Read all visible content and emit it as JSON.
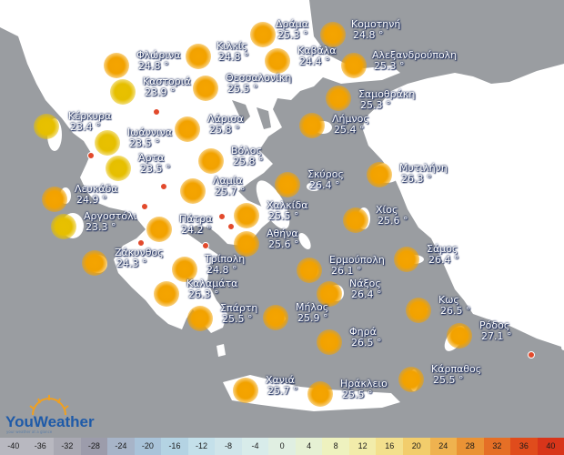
{
  "map_title": "",
  "cities": [
    {
      "id": "drama",
      "name": "Δράμα",
      "temp": "25.3 °",
      "tone": "orange"
    },
    {
      "id": "komotini",
      "name": "Κομοτηνή",
      "temp": "24.8 °",
      "tone": "orange"
    },
    {
      "id": "florina",
      "name": "Φλώρινα",
      "temp": "24.8 °",
      "tone": "orange"
    },
    {
      "id": "kilkis",
      "name": "Κιλκίς",
      "temp": "24.8 °",
      "tone": "orange"
    },
    {
      "id": "kavala",
      "name": "Καβάλα",
      "temp": "24.4 °",
      "tone": "orange"
    },
    {
      "id": "alexandroupoli",
      "name": "Αλεξανδρούπολη",
      "temp": "25.3 °",
      "tone": "orange"
    },
    {
      "id": "kastoria",
      "name": "Καστοριά",
      "temp": "23.9 °",
      "tone": "yellow"
    },
    {
      "id": "thessaloniki",
      "name": "Θεσσαλονίκη",
      "temp": "25.5 °",
      "tone": "orange"
    },
    {
      "id": "samothraki",
      "name": "Σαμοθράκη",
      "temp": "25.3 °",
      "tone": "orange"
    },
    {
      "id": "kerkyra",
      "name": "Κέρκυρα",
      "temp": "23.4 °",
      "tone": "yellow"
    },
    {
      "id": "ioannina",
      "name": "Ιωάννινα",
      "temp": "23.5 °",
      "tone": "yellow"
    },
    {
      "id": "larisa",
      "name": "Λάρισα",
      "temp": "25.8 °",
      "tone": "orange"
    },
    {
      "id": "limnos",
      "name": "Λήμνος",
      "temp": "25.4 °",
      "tone": "orange"
    },
    {
      "id": "arta",
      "name": "Άρτα",
      "temp": "23.5 °",
      "tone": "yellow"
    },
    {
      "id": "volos",
      "name": "Βόλος",
      "temp": "25.8 °",
      "tone": "orange"
    },
    {
      "id": "mytilini",
      "name": "Μυτιλήνη",
      "temp": "26.3 °",
      "tone": "orange"
    },
    {
      "id": "lefkada",
      "name": "Λευκάδα",
      "temp": "24.9 °",
      "tone": "orange"
    },
    {
      "id": "lamia",
      "name": "Λαμία",
      "temp": "25.7 °",
      "tone": "orange"
    },
    {
      "id": "skyros",
      "name": "Σκύρος",
      "temp": "26.4 °",
      "tone": "orange"
    },
    {
      "id": "argostoli",
      "name": "Αργοστόλι",
      "temp": "23.3 °",
      "tone": "yellow"
    },
    {
      "id": "patra",
      "name": "Πάτρα",
      "temp": "24.2 °",
      "tone": "orange"
    },
    {
      "id": "chalkida",
      "name": "Χαλκίδα",
      "temp": "25.5 °",
      "tone": "orange"
    },
    {
      "id": "chios",
      "name": "Χίος",
      "temp": "25.6 °",
      "tone": "orange"
    },
    {
      "id": "athina",
      "name": "Αθήνα",
      "temp": "25.6 °",
      "tone": "orange"
    },
    {
      "id": "zakynthos",
      "name": "Ζάκυνθος",
      "temp": "24.3 °",
      "tone": "orange"
    },
    {
      "id": "tripoli",
      "name": "Τρίπολη",
      "temp": "24.8 °",
      "tone": "orange"
    },
    {
      "id": "ermoupoli",
      "name": "Ερμούπολη",
      "temp": "26.1 °",
      "tone": "orange"
    },
    {
      "id": "samos",
      "name": "Σάμος",
      "temp": "26.4 °",
      "tone": "orange"
    },
    {
      "id": "kalamata",
      "name": "Καλαμάτα",
      "temp": "26.3 °",
      "tone": "orange"
    },
    {
      "id": "naxos",
      "name": "Νάξος",
      "temp": "26.4 °",
      "tone": "orange"
    },
    {
      "id": "kos",
      "name": "Κως",
      "temp": "26.5 °",
      "tone": "orange"
    },
    {
      "id": "sparti",
      "name": "Σπάρτη",
      "temp": "25.5 °",
      "tone": "orange"
    },
    {
      "id": "milos",
      "name": "Μήλος",
      "temp": "25.9 °",
      "tone": "orange"
    },
    {
      "id": "rodos",
      "name": "Ρόδος",
      "temp": "27.1 °",
      "tone": "orange"
    },
    {
      "id": "fira",
      "name": "Φηρά",
      "temp": "26.5 °",
      "tone": "orange"
    },
    {
      "id": "karpathos",
      "name": "Κάρπαθος",
      "temp": "25.5 °",
      "tone": "orange"
    },
    {
      "id": "chania",
      "name": "Χανιά",
      "temp": "25.7 °",
      "tone": "orange"
    },
    {
      "id": "irakleio",
      "name": "Ηράκλειο",
      "temp": "25.5 °",
      "tone": "orange"
    }
  ],
  "logo": {
    "text": "YouWeather",
    "tagline": "your weather at a glance"
  },
  "scale": {
    "labels": [
      "-40",
      "-36",
      "-32",
      "-28",
      "-24",
      "-20",
      "-16",
      "-12",
      "-8",
      "-4",
      "0",
      "4",
      "8",
      "12",
      "16",
      "20",
      "24",
      "28",
      "32",
      "36",
      "40"
    ],
    "colors": [
      "#b8b8c0",
      "#b8b8c0",
      "#a9a9b3",
      "#9c9cab",
      "#a7b4c8",
      "#a9c3d9",
      "#b4d3e3",
      "#c4e0ea",
      "#cfe5ea",
      "#d8ecea",
      "#e0efe2",
      "#e6f1d4",
      "#eef2bf",
      "#f2ecaa",
      "#f3e08d",
      "#f2cd6c",
      "#efb24f",
      "#ea9335",
      "#e56f26",
      "#e04c1c",
      "#d8351a"
    ]
  }
}
